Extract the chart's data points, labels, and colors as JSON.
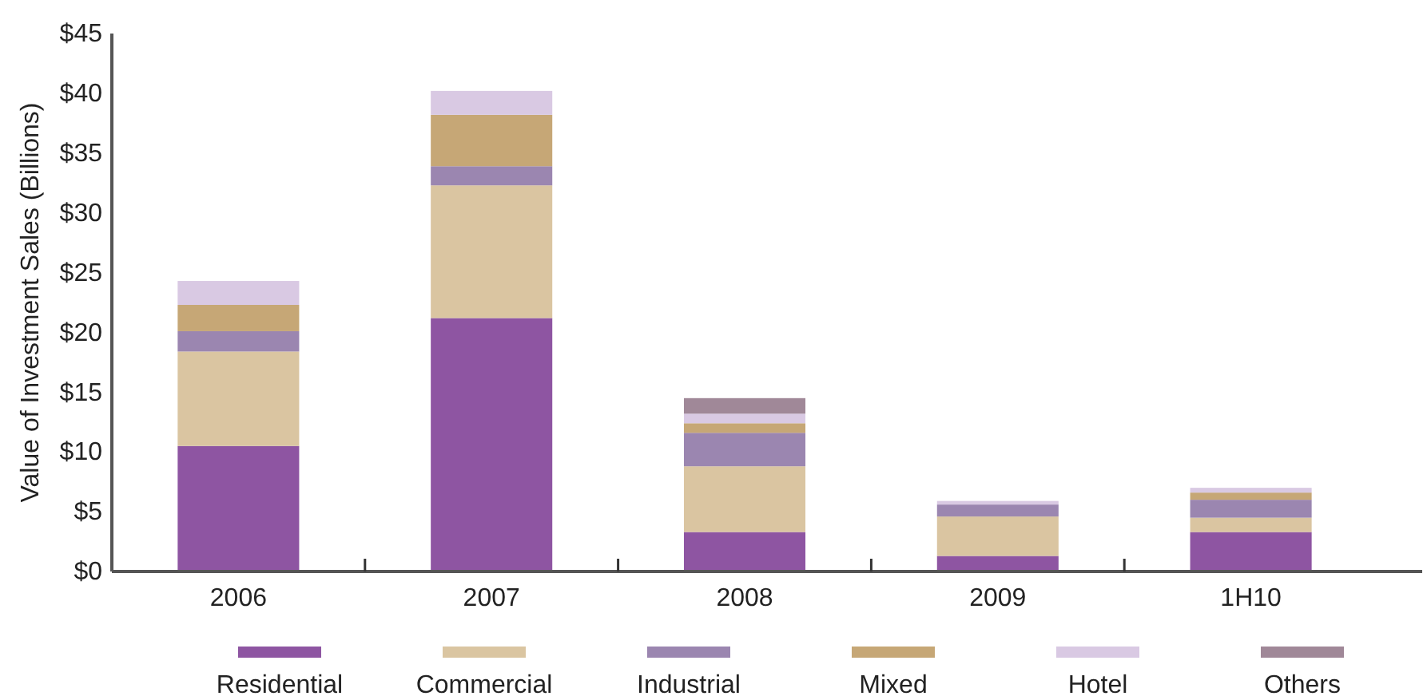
{
  "chart_data": {
    "type": "bar",
    "stacked": true,
    "ylabel": "Value of Investment Sales (Billions)",
    "categories": [
      "2006",
      "2007",
      "2008",
      "2009",
      "1H10"
    ],
    "series": [
      {
        "name": "Residential",
        "color": "#8e55a2",
        "values": [
          10.5,
          21.2,
          3.3,
          1.3,
          3.3
        ]
      },
      {
        "name": "Commercial",
        "color": "#dac5a1",
        "values": [
          7.9,
          11.1,
          5.5,
          3.3,
          1.2
        ]
      },
      {
        "name": "Industrial",
        "color": "#9b86b0",
        "values": [
          1.7,
          1.6,
          2.8,
          1.0,
          1.5
        ]
      },
      {
        "name": "Mixed",
        "color": "#c6a776",
        "values": [
          2.2,
          4.3,
          0.8,
          0,
          0.6
        ]
      },
      {
        "name": "Hotel",
        "color": "#d9c9e3",
        "values": [
          2.0,
          2.0,
          0.8,
          0.3,
          0.4
        ]
      },
      {
        "name": "Others",
        "color": "#a08898",
        "values": [
          0,
          0,
          1.3,
          0,
          0
        ]
      }
    ],
    "ylim": [
      0,
      45
    ],
    "yticks": [
      {
        "value": 0,
        "label": "$0"
      },
      {
        "value": 5,
        "label": "$5"
      },
      {
        "value": 10,
        "label": "$10"
      },
      {
        "value": 15,
        "label": "$15"
      },
      {
        "value": 20,
        "label": "$20"
      },
      {
        "value": 25,
        "label": "$25"
      },
      {
        "value": 30,
        "label": "$30"
      },
      {
        "value": 35,
        "label": "$35"
      },
      {
        "value": 40,
        "label": "$40"
      },
      {
        "value": 45,
        "label": "$45"
      }
    ],
    "legend": "bottom"
  }
}
